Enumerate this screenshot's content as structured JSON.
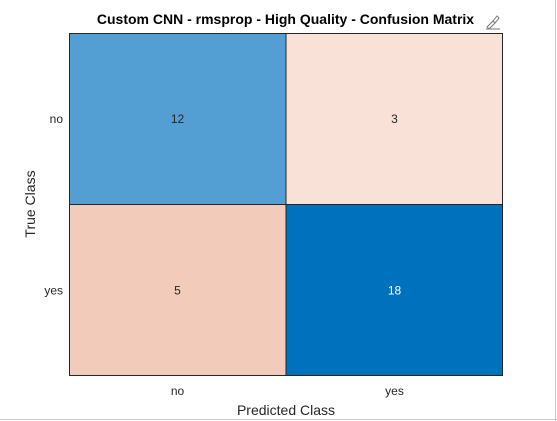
{
  "chart_data": {
    "type": "heatmap",
    "title": "Custom CNN - rmsprop - High Quality - Confusion Matrix",
    "xlabel": "Predicted Class",
    "ylabel": "True Class",
    "x_categories": [
      "no",
      "yes"
    ],
    "y_categories": [
      "no",
      "yes"
    ],
    "values": [
      [
        12,
        3
      ],
      [
        5,
        18
      ]
    ],
    "colors": {
      "correct_high": "#0072BD",
      "correct_low": "#559FD3",
      "incorrect_high": "#F2CBBB",
      "incorrect_low": "#F9E1D8",
      "text_dark": "#262626",
      "text_light": "#ffffff"
    },
    "grid": false,
    "legend": "none"
  },
  "toolbar": {
    "export_icon": "export-brush-icon"
  }
}
